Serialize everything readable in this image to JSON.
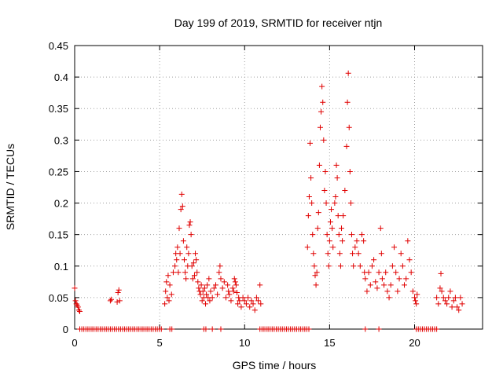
{
  "chart_data": {
    "type": "scatter",
    "title": "Day 199 of 2019, SRMTID for receiver ntjn",
    "xlabel": "GPS time / hours",
    "ylabel": "SRMTID / TECUs",
    "xlim": [
      0,
      24
    ],
    "ylim": [
      0,
      0.45
    ],
    "x_ticks": [
      0,
      5,
      10,
      15,
      20
    ],
    "y_ticks": [
      0,
      0.05,
      0.1,
      0.15,
      0.2,
      0.25,
      0.3,
      0.35,
      0.4,
      0.45
    ],
    "x_tick_labels": [
      "0",
      "5",
      "10",
      "15",
      "20"
    ],
    "y_tick_labels": [
      "0",
      "0.05",
      "0.1",
      "0.15",
      "0.2",
      "0.25",
      "0.3",
      "0.35",
      "0.4",
      "0.45"
    ],
    "grid": true,
    "marker": "+",
    "color": "#e00000",
    "series": [
      {
        "name": "SRMTID",
        "points": [
          [
            0.0,
            0.065
          ],
          [
            0.05,
            0.045
          ],
          [
            0.1,
            0.04
          ],
          [
            0.15,
            0.038
          ],
          [
            0.2,
            0.035
          ],
          [
            0.25,
            0.03
          ],
          [
            0.3,
            0.028
          ],
          [
            2.1,
            0.045
          ],
          [
            2.15,
            0.047
          ],
          [
            2.5,
            0.043
          ],
          [
            2.55,
            0.058
          ],
          [
            2.6,
            0.062
          ],
          [
            2.65,
            0.045
          ],
          [
            5.3,
            0.04
          ],
          [
            5.35,
            0.06
          ],
          [
            5.4,
            0.075
          ],
          [
            5.45,
            0.05
          ],
          [
            5.5,
            0.085
          ],
          [
            5.55,
            0.045
          ],
          [
            5.6,
            0.07
          ],
          [
            5.7,
            0.055
          ],
          [
            5.8,
            0.09
          ],
          [
            5.9,
            0.1
          ],
          [
            5.95,
            0.12
          ],
          [
            6.0,
            0.11
          ],
          [
            6.05,
            0.13
          ],
          [
            6.1,
            0.09
          ],
          [
            6.15,
            0.16
          ],
          [
            6.2,
            0.12
          ],
          [
            6.25,
            0.19
          ],
          [
            6.3,
            0.214
          ],
          [
            6.35,
            0.195
          ],
          [
            6.4,
            0.14
          ],
          [
            6.45,
            0.11
          ],
          [
            6.5,
            0.09
          ],
          [
            6.55,
            0.08
          ],
          [
            6.6,
            0.13
          ],
          [
            6.65,
            0.1
          ],
          [
            6.7,
            0.12
          ],
          [
            6.75,
            0.165
          ],
          [
            6.8,
            0.17
          ],
          [
            6.85,
            0.15
          ],
          [
            6.9,
            0.1
          ],
          [
            6.95,
            0.08
          ],
          [
            7.0,
            0.105
          ],
          [
            7.05,
            0.085
          ],
          [
            7.1,
            0.12
          ],
          [
            7.15,
            0.11
          ],
          [
            7.2,
            0.09
          ],
          [
            7.25,
            0.075
          ],
          [
            7.3,
            0.065
          ],
          [
            7.35,
            0.06
          ],
          [
            7.4,
            0.055
          ],
          [
            7.45,
            0.07
          ],
          [
            7.5,
            0.045
          ],
          [
            7.55,
            0.06
          ],
          [
            7.6,
            0.05
          ],
          [
            7.65,
            0.065
          ],
          [
            7.7,
            0.04
          ],
          [
            7.75,
            0.055
          ],
          [
            7.8,
            0.07
          ],
          [
            7.85,
            0.05
          ],
          [
            7.9,
            0.08
          ],
          [
            7.95,
            0.045
          ],
          [
            8.0,
            0.06
          ],
          [
            8.1,
            0.05
          ],
          [
            8.2,
            0.065
          ],
          [
            8.3,
            0.07
          ],
          [
            8.4,
            0.055
          ],
          [
            8.5,
            0.09
          ],
          [
            8.55,
            0.1
          ],
          [
            8.6,
            0.08
          ],
          [
            8.7,
            0.065
          ],
          [
            8.8,
            0.075
          ],
          [
            8.9,
            0.05
          ],
          [
            9.0,
            0.07
          ],
          [
            9.05,
            0.06
          ],
          [
            9.1,
            0.055
          ],
          [
            9.2,
            0.045
          ],
          [
            9.3,
            0.065
          ],
          [
            9.35,
            0.06
          ],
          [
            9.4,
            0.08
          ],
          [
            9.45,
            0.075
          ],
          [
            9.5,
            0.07
          ],
          [
            9.55,
            0.058
          ],
          [
            9.6,
            0.04
          ],
          [
            9.65,
            0.05
          ],
          [
            9.7,
            0.045
          ],
          [
            9.8,
            0.035
          ],
          [
            9.9,
            0.05
          ],
          [
            10.0,
            0.045
          ],
          [
            10.1,
            0.04
          ],
          [
            10.2,
            0.05
          ],
          [
            10.3,
            0.035
          ],
          [
            10.4,
            0.045
          ],
          [
            10.5,
            0.04
          ],
          [
            10.6,
            0.03
          ],
          [
            10.7,
            0.05
          ],
          [
            10.8,
            0.045
          ],
          [
            10.9,
            0.07
          ],
          [
            10.95,
            0.04
          ],
          [
            13.7,
            0.13
          ],
          [
            13.75,
            0.18
          ],
          [
            13.8,
            0.21
          ],
          [
            13.85,
            0.295
          ],
          [
            13.9,
            0.24
          ],
          [
            13.95,
            0.2
          ],
          [
            14.0,
            0.15
          ],
          [
            14.05,
            0.12
          ],
          [
            14.1,
            0.1
          ],
          [
            14.15,
            0.085
          ],
          [
            14.2,
            0.07
          ],
          [
            14.25,
            0.09
          ],
          [
            14.3,
            0.16
          ],
          [
            14.35,
            0.185
          ],
          [
            14.4,
            0.26
          ],
          [
            14.45,
            0.32
          ],
          [
            14.5,
            0.345
          ],
          [
            14.55,
            0.385
          ],
          [
            14.6,
            0.36
          ],
          [
            14.65,
            0.3
          ],
          [
            14.7,
            0.22
          ],
          [
            14.75,
            0.25
          ],
          [
            14.8,
            0.2
          ],
          [
            14.85,
            0.15
          ],
          [
            14.9,
            0.12
          ],
          [
            14.95,
            0.1
          ],
          [
            15.0,
            0.14
          ],
          [
            15.05,
            0.17
          ],
          [
            15.1,
            0.19
          ],
          [
            15.15,
            0.16
          ],
          [
            15.2,
            0.13
          ],
          [
            15.3,
            0.2
          ],
          [
            15.35,
            0.21
          ],
          [
            15.4,
            0.26
          ],
          [
            15.45,
            0.24
          ],
          [
            15.5,
            0.18
          ],
          [
            15.55,
            0.15
          ],
          [
            15.6,
            0.12
          ],
          [
            15.65,
            0.1
          ],
          [
            15.7,
            0.16
          ],
          [
            15.75,
            0.14
          ],
          [
            15.8,
            0.18
          ],
          [
            15.9,
            0.22
          ],
          [
            16.0,
            0.29
          ],
          [
            16.05,
            0.36
          ],
          [
            16.1,
            0.406
          ],
          [
            16.15,
            0.32
          ],
          [
            16.2,
            0.25
          ],
          [
            16.25,
            0.2
          ],
          [
            16.3,
            0.15
          ],
          [
            16.35,
            0.12
          ],
          [
            16.4,
            0.1
          ],
          [
            16.5,
            0.13
          ],
          [
            16.6,
            0.14
          ],
          [
            16.7,
            0.12
          ],
          [
            16.8,
            0.1
          ],
          [
            16.9,
            0.15
          ],
          [
            17.0,
            0.14
          ],
          [
            17.05,
            0.09
          ],
          [
            17.1,
            0.08
          ],
          [
            17.2,
            0.06
          ],
          [
            17.3,
            0.09
          ],
          [
            17.4,
            0.07
          ],
          [
            17.5,
            0.1
          ],
          [
            17.6,
            0.11
          ],
          [
            17.7,
            0.075
          ],
          [
            17.8,
            0.065
          ],
          [
            17.9,
            0.09
          ],
          [
            18.0,
            0.16
          ],
          [
            18.05,
            0.12
          ],
          [
            18.1,
            0.08
          ],
          [
            18.2,
            0.07
          ],
          [
            18.3,
            0.09
          ],
          [
            18.4,
            0.06
          ],
          [
            18.5,
            0.05
          ],
          [
            18.6,
            0.07
          ],
          [
            18.7,
            0.1
          ],
          [
            18.8,
            0.13
          ],
          [
            18.9,
            0.09
          ],
          [
            19.0,
            0.06
          ],
          [
            19.1,
            0.08
          ],
          [
            19.2,
            0.12
          ],
          [
            19.3,
            0.1
          ],
          [
            19.4,
            0.07
          ],
          [
            19.5,
            0.08
          ],
          [
            19.6,
            0.14
          ],
          [
            19.7,
            0.11
          ],
          [
            19.8,
            0.09
          ],
          [
            19.9,
            0.06
          ],
          [
            20.0,
            0.05
          ],
          [
            20.05,
            0.045
          ],
          [
            20.1,
            0.04
          ],
          [
            20.15,
            0.055
          ],
          [
            21.3,
            0.05
          ],
          [
            21.4,
            0.04
          ],
          [
            21.5,
            0.065
          ],
          [
            21.55,
            0.088
          ],
          [
            21.6,
            0.06
          ],
          [
            21.7,
            0.05
          ],
          [
            21.8,
            0.045
          ],
          [
            21.9,
            0.04
          ],
          [
            22.0,
            0.05
          ],
          [
            22.1,
            0.06
          ],
          [
            22.2,
            0.035
          ],
          [
            22.3,
            0.045
          ],
          [
            22.4,
            0.05
          ],
          [
            22.5,
            0.035
          ],
          [
            22.6,
            0.03
          ],
          [
            22.7,
            0.05
          ],
          [
            22.8,
            0.04
          ]
        ],
        "zero_segments": [
          [
            0.3,
            5.2
          ],
          [
            5.6,
            5.8
          ],
          [
            7.6,
            7.8
          ],
          [
            8.1,
            8.2
          ],
          [
            8.6,
            8.7
          ],
          [
            10.9,
            13.8
          ],
          [
            17.1,
            17.2
          ],
          [
            17.9,
            18.0
          ],
          [
            20.1,
            21.3
          ]
        ]
      }
    ]
  }
}
